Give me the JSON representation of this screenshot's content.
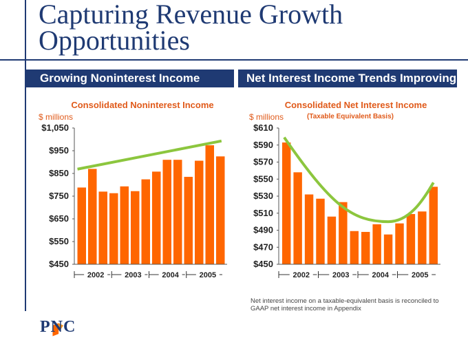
{
  "page": {
    "title": "Capturing Revenue Growth Opportunities",
    "left_header": "Growing Noninterest Income",
    "right_header": "Net Interest Income Trends Improving",
    "footnote": "Net interest income on a taxable-equivalent basis is reconciled to GAAP net interest income in Appendix",
    "logo_text": "PNC"
  },
  "colors": {
    "navy": "#1f3a73",
    "bar": "#ff6600",
    "trend": "#8cc63e",
    "orange_title": "#e05a1a"
  },
  "chart_data": [
    {
      "type": "bar",
      "title": "Consolidated Noninterest Income",
      "subtitle": "",
      "ylabel": "$ millions",
      "ylim": [
        450,
        1050
      ],
      "yticks": [
        450,
        550,
        650,
        750,
        850,
        950,
        1050
      ],
      "ytick_labels": [
        "$450",
        "$550",
        "$650",
        "$750",
        "$850",
        "$950",
        "$1,050"
      ],
      "year_labels": [
        "2002",
        "2003",
        "2004",
        "2005"
      ],
      "values": [
        788,
        870,
        770,
        763,
        793,
        772,
        824,
        858,
        910,
        910,
        835,
        906,
        974,
        925
      ],
      "trend": {
        "type": "linear",
        "start": 869,
        "end": 993
      }
    },
    {
      "type": "bar",
      "title": "Consolidated Net Interest Income",
      "subtitle": "(Taxable Equivalent Basis)",
      "ylabel": "$ millions",
      "ylim": [
        450,
        610
      ],
      "yticks": [
        450,
        470,
        490,
        510,
        530,
        550,
        570,
        590,
        610
      ],
      "ytick_labels": [
        "$450",
        "$470",
        "$490",
        "$510",
        "$530",
        "$550",
        "$570",
        "$590",
        "$610"
      ],
      "year_labels": [
        "2002",
        "2003",
        "2004",
        "2005"
      ],
      "values": [
        593,
        558,
        532,
        527,
        506,
        523,
        489,
        488,
        497,
        485,
        498,
        509,
        512,
        541
      ],
      "trend": {
        "type": "curve",
        "start": 599,
        "min": 500,
        "end": 546
      }
    }
  ]
}
